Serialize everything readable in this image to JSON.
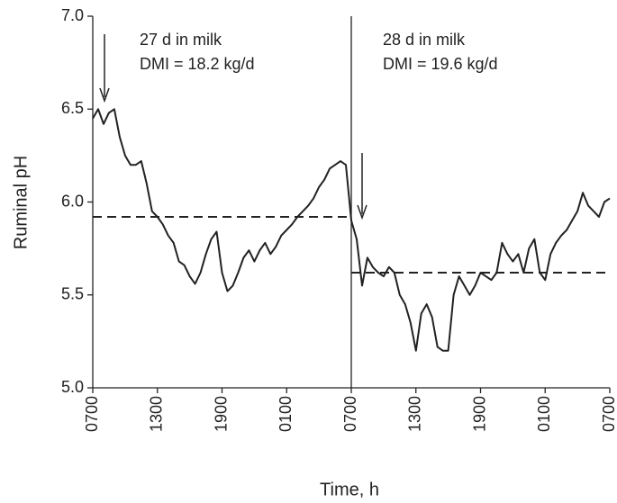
{
  "chart_data": {
    "type": "line",
    "xlabel": "Time, h",
    "ylabel": "Ruminal pH",
    "annotations": [
      "27 d in milk",
      "DMI = 18.2 kg/d",
      "28 d in milk",
      "DMI = 19.6 kg/d"
    ],
    "xlim": [
      0,
      48
    ],
    "xticks": [
      {
        "value": 0,
        "label": "0700"
      },
      {
        "value": 6,
        "label": "1300"
      },
      {
        "value": 12,
        "label": "1900"
      },
      {
        "value": 18,
        "label": "0100"
      },
      {
        "value": 24,
        "label": "0700"
      },
      {
        "value": 30,
        "label": "1300"
      },
      {
        "value": 36,
        "label": "1900"
      },
      {
        "value": 42,
        "label": "0100"
      },
      {
        "value": 48,
        "label": "0700"
      }
    ],
    "ylim": [
      5.0,
      7.0
    ],
    "yticks": [
      {
        "value": 5.0,
        "label": "5.0"
      },
      5.5,
      {
        "value": 6.0,
        "label": "6.0"
      },
      6.5,
      {
        "value": 7.0,
        "label": "7.0"
      }
    ],
    "series": [
      {
        "color": "#222222",
        "x": [
          0,
          0.5,
          1,
          1.5,
          2,
          2.5,
          3,
          3.5,
          4,
          4.5,
          5,
          5.5,
          6,
          6.5,
          7,
          7.5,
          8,
          8.5,
          9,
          9.5,
          10,
          10.5,
          11,
          11.5,
          12,
          12.5,
          13,
          13.5,
          14,
          14.5,
          15,
          15.5,
          16,
          16.5,
          17,
          17.5,
          18,
          18.5,
          19,
          19.5,
          20,
          20.5,
          21,
          21.5,
          22,
          22.5,
          23,
          23.5,
          24,
          24.5,
          25,
          25.5,
          26,
          26.5,
          27,
          27.5,
          28,
          28.5,
          29,
          29.5,
          30,
          30.5,
          31,
          31.5,
          32,
          32.5,
          33,
          33.5,
          34,
          34.5,
          35,
          35.5,
          36,
          36.5,
          37,
          37.5,
          38,
          38.5,
          39,
          39.5,
          40,
          40.5,
          41,
          41.5,
          42,
          42.5,
          43,
          43.5,
          44,
          44.5,
          45,
          45.5,
          46,
          46.5,
          47,
          47.5,
          48
        ],
        "values": [
          6.45,
          6.5,
          6.42,
          6.48,
          6.5,
          6.35,
          6.25,
          6.2,
          6.2,
          6.22,
          6.1,
          5.95,
          5.92,
          5.88,
          5.82,
          5.78,
          5.68,
          5.66,
          5.6,
          5.56,
          5.62,
          5.72,
          5.8,
          5.84,
          5.62,
          5.52,
          5.55,
          5.62,
          5.7,
          5.74,
          5.68,
          5.74,
          5.78,
          5.72,
          5.76,
          5.82,
          5.85,
          5.88,
          5.92,
          5.95,
          5.98,
          6.02,
          6.08,
          6.12,
          6.18,
          6.2,
          6.22,
          6.2,
          5.9,
          5.8,
          5.55,
          5.7,
          5.65,
          5.62,
          5.6,
          5.65,
          5.62,
          5.5,
          5.45,
          5.35,
          5.2,
          5.4,
          5.45,
          5.38,
          5.22,
          5.2,
          5.2,
          5.5,
          5.6,
          5.55,
          5.5,
          5.55,
          5.62,
          5.6,
          5.58,
          5.62,
          5.78,
          5.72,
          5.68,
          5.72,
          5.62,
          5.75,
          5.8,
          5.62,
          5.58,
          5.72,
          5.78,
          5.82,
          5.85,
          5.9,
          5.95,
          6.05,
          5.98,
          5.95,
          5.92,
          6.0,
          6.02
        ]
      }
    ],
    "mean_lines": [
      {
        "x": [
          0,
          24
        ],
        "value": 5.92
      },
      {
        "x": [
          24,
          48
        ],
        "value": 5.62
      }
    ]
  }
}
